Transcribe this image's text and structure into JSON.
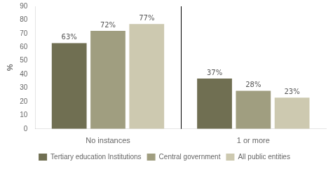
{
  "chart_data": {
    "type": "bar",
    "ylabel": "%",
    "categories": [
      "No instances",
      "1 or more"
    ],
    "series": [
      {
        "name": "Tertiary education Institutions",
        "color": "#706f52",
        "values": [
          63,
          37
        ],
        "value_labels": [
          "63%",
          "37%"
        ]
      },
      {
        "name": "Central government",
        "color": "#a09e80",
        "values": [
          72,
          28
        ],
        "value_labels": [
          "72%",
          "28%"
        ]
      },
      {
        "name": "All public entities",
        "color": "#cdc9b0",
        "values": [
          77,
          23
        ],
        "value_labels": [
          "77%",
          "23%"
        ]
      }
    ],
    "ylim": [
      0,
      90
    ],
    "yticks": [
      0,
      10,
      20,
      30,
      40,
      50,
      60,
      70,
      80,
      90
    ],
    "grid": false,
    "legend": "bottom",
    "data_labels": true
  }
}
